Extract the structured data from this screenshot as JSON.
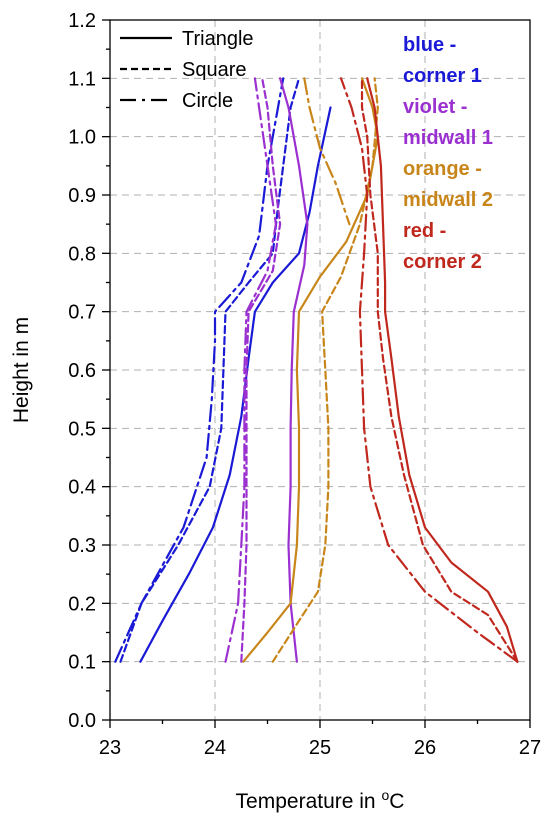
{
  "chart_data": {
    "type": "line",
    "xlabel": "Temperature in",
    "xlabel_sup": "o",
    "xlabel_unit": "C",
    "ylabel": "Height in m",
    "xlim": [
      23,
      27
    ],
    "ylim": [
      0.0,
      1.2
    ],
    "x_ticks": [
      "23",
      "24",
      "25",
      "26",
      "27"
    ],
    "y_ticks": [
      "0.0",
      "0.1",
      "0.2",
      "0.3",
      "0.4",
      "0.5",
      "0.6",
      "0.7",
      "0.8",
      "0.9",
      "1.0",
      "1.1",
      "1.2"
    ],
    "grid": true,
    "legend": {
      "placement": "top-left",
      "entries": [
        {
          "label": "Triangle",
          "dash": "solid"
        },
        {
          "label": "Square",
          "dash": "dash"
        },
        {
          "label": "Circle",
          "dash": "dash-dot"
        }
      ]
    },
    "annotations": [
      {
        "lines": [
          "blue -",
          "corner 1"
        ],
        "color": "#1a1ad6"
      },
      {
        "lines": [
          "violet -",
          "midwall 1"
        ],
        "color": "#9b30d0"
      },
      {
        "lines": [
          "orange -",
          "midwall 2"
        ],
        "color": "#c8861a"
      },
      {
        "lines": [
          "red -",
          "corner 2"
        ],
        "color": "#c0281e"
      }
    ],
    "series": [
      {
        "location": "corner 1",
        "shape": "Triangle",
        "color": "#1a1ad6",
        "dash": "solid",
        "points": [
          [
            23.29,
            0.1
          ],
          [
            23.5,
            0.17
          ],
          [
            23.75,
            0.25
          ],
          [
            23.98,
            0.33
          ],
          [
            24.14,
            0.42
          ],
          [
            24.25,
            0.52
          ],
          [
            24.32,
            0.62
          ],
          [
            24.38,
            0.7
          ],
          [
            24.55,
            0.75
          ],
          [
            24.8,
            0.8
          ],
          [
            24.9,
            0.87
          ],
          [
            24.98,
            0.95
          ],
          [
            25.1,
            1.05
          ]
        ]
      },
      {
        "location": "corner 1",
        "shape": "Square",
        "color": "#1a1ad6",
        "dash": "dash",
        "points": [
          [
            23.1,
            0.1
          ],
          [
            23.3,
            0.2
          ],
          [
            23.65,
            0.3
          ],
          [
            23.95,
            0.4
          ],
          [
            24.06,
            0.5
          ],
          [
            24.08,
            0.6
          ],
          [
            24.1,
            0.7
          ],
          [
            24.32,
            0.75
          ],
          [
            24.55,
            0.8
          ],
          [
            24.6,
            0.88
          ],
          [
            24.65,
            0.95
          ],
          [
            24.72,
            1.05
          ],
          [
            24.8,
            1.1
          ]
        ]
      },
      {
        "location": "corner 1",
        "shape": "Circle",
        "color": "#1a1ad6",
        "dash": "dashdot",
        "points": [
          [
            23.05,
            0.1
          ],
          [
            23.3,
            0.2
          ],
          [
            23.7,
            0.33
          ],
          [
            23.92,
            0.45
          ],
          [
            23.97,
            0.55
          ],
          [
            24.0,
            0.65
          ],
          [
            24.0,
            0.7
          ],
          [
            24.25,
            0.75
          ],
          [
            24.42,
            0.83
          ],
          [
            24.5,
            0.95
          ],
          [
            24.6,
            1.05
          ],
          [
            24.65,
            1.1
          ]
        ]
      },
      {
        "location": "midwall 1",
        "shape": "Triangle",
        "color": "#9b30d0",
        "dash": "solid",
        "points": [
          [
            24.78,
            0.1
          ],
          [
            24.72,
            0.2
          ],
          [
            24.7,
            0.3
          ],
          [
            24.72,
            0.4
          ],
          [
            24.72,
            0.5
          ],
          [
            24.73,
            0.6
          ],
          [
            24.75,
            0.7
          ],
          [
            24.85,
            0.78
          ],
          [
            24.88,
            0.85
          ],
          [
            24.8,
            0.95
          ],
          [
            24.7,
            1.05
          ],
          [
            24.62,
            1.1
          ]
        ]
      },
      {
        "location": "midwall 1",
        "shape": "Square",
        "color": "#9b30d0",
        "dash": "dash",
        "points": [
          [
            24.25,
            0.1
          ],
          [
            24.28,
            0.2
          ],
          [
            24.3,
            0.3
          ],
          [
            24.3,
            0.4
          ],
          [
            24.3,
            0.5
          ],
          [
            24.3,
            0.6
          ],
          [
            24.32,
            0.7
          ],
          [
            24.55,
            0.77
          ],
          [
            24.62,
            0.85
          ],
          [
            24.55,
            0.95
          ],
          [
            24.5,
            1.05
          ],
          [
            24.45,
            1.1
          ]
        ]
      },
      {
        "location": "midwall 1",
        "shape": "Circle",
        "color": "#9b30d0",
        "dash": "dashdot",
        "points": [
          [
            24.1,
            0.1
          ],
          [
            24.22,
            0.2
          ],
          [
            24.25,
            0.3
          ],
          [
            24.28,
            0.4
          ],
          [
            24.28,
            0.5
          ],
          [
            24.28,
            0.6
          ],
          [
            24.3,
            0.7
          ],
          [
            24.5,
            0.77
          ],
          [
            24.58,
            0.85
          ],
          [
            24.5,
            0.95
          ],
          [
            24.42,
            1.05
          ],
          [
            24.38,
            1.1
          ]
        ]
      },
      {
        "location": "midwall 2",
        "shape": "Triangle",
        "color": "#c8861a",
        "dash": "solid",
        "points": [
          [
            24.27,
            0.1
          ],
          [
            24.5,
            0.15
          ],
          [
            24.72,
            0.2
          ],
          [
            24.78,
            0.3
          ],
          [
            24.8,
            0.4
          ],
          [
            24.8,
            0.5
          ],
          [
            24.78,
            0.6
          ],
          [
            24.8,
            0.7
          ],
          [
            25.0,
            0.76
          ],
          [
            25.25,
            0.82
          ],
          [
            25.45,
            0.9
          ],
          [
            25.55,
            1.0
          ],
          [
            25.5,
            1.05
          ],
          [
            25.4,
            1.1
          ]
        ]
      },
      {
        "location": "midwall 2",
        "shape": "Square",
        "color": "#c8861a",
        "dash": "dash",
        "points": [
          [
            24.55,
            0.1
          ],
          [
            24.8,
            0.17
          ],
          [
            24.98,
            0.22
          ],
          [
            25.05,
            0.3
          ],
          [
            25.08,
            0.4
          ],
          [
            25.08,
            0.5
          ],
          [
            25.05,
            0.6
          ],
          [
            25.02,
            0.7
          ],
          [
            25.2,
            0.76
          ],
          [
            25.38,
            0.85
          ],
          [
            25.5,
            0.95
          ],
          [
            25.55,
            1.05
          ],
          [
            25.52,
            1.1
          ]
        ]
      },
      {
        "location": "midwall 2",
        "shape": "Circle",
        "color": "#c8861a",
        "dash": "dashdot",
        "points": [
          [
            24.85,
            1.1
          ],
          [
            24.9,
            1.05
          ],
          [
            25.0,
            0.98
          ],
          [
            25.15,
            0.92
          ],
          [
            25.28,
            0.85
          ]
        ]
      },
      {
        "location": "corner 2",
        "shape": "Triangle",
        "color": "#c0281e",
        "dash": "solid",
        "points": [
          [
            26.88,
            0.1
          ],
          [
            26.78,
            0.16
          ],
          [
            26.6,
            0.22
          ],
          [
            26.25,
            0.27
          ],
          [
            26.0,
            0.33
          ],
          [
            25.85,
            0.42
          ],
          [
            25.75,
            0.52
          ],
          [
            25.68,
            0.62
          ],
          [
            25.62,
            0.7
          ],
          [
            25.62,
            0.75
          ],
          [
            25.6,
            0.85
          ],
          [
            25.58,
            0.95
          ],
          [
            25.52,
            1.05
          ],
          [
            25.45,
            1.1
          ]
        ]
      },
      {
        "location": "corner 2",
        "shape": "Square",
        "color": "#c0281e",
        "dash": "dash",
        "points": [
          [
            26.88,
            0.1
          ],
          [
            26.6,
            0.18
          ],
          [
            26.25,
            0.22
          ],
          [
            25.98,
            0.3
          ],
          [
            25.8,
            0.42
          ],
          [
            25.68,
            0.52
          ],
          [
            25.6,
            0.62
          ],
          [
            25.55,
            0.7
          ],
          [
            25.55,
            0.8
          ],
          [
            25.48,
            0.9
          ],
          [
            25.45,
            1.0
          ],
          [
            25.4,
            1.05
          ],
          [
            25.4,
            1.1
          ]
        ]
      },
      {
        "location": "corner 2",
        "shape": "Circle",
        "color": "#c0281e",
        "dash": "dashdot",
        "points": [
          [
            26.88,
            0.1
          ],
          [
            26.5,
            0.15
          ],
          [
            26.0,
            0.22
          ],
          [
            25.65,
            0.3
          ],
          [
            25.48,
            0.4
          ],
          [
            25.42,
            0.5
          ],
          [
            25.4,
            0.6
          ],
          [
            25.38,
            0.7
          ],
          [
            25.42,
            0.8
          ],
          [
            25.45,
            0.9
          ],
          [
            25.4,
            0.98
          ],
          [
            25.3,
            1.05
          ],
          [
            25.2,
            1.1
          ]
        ]
      }
    ]
  }
}
